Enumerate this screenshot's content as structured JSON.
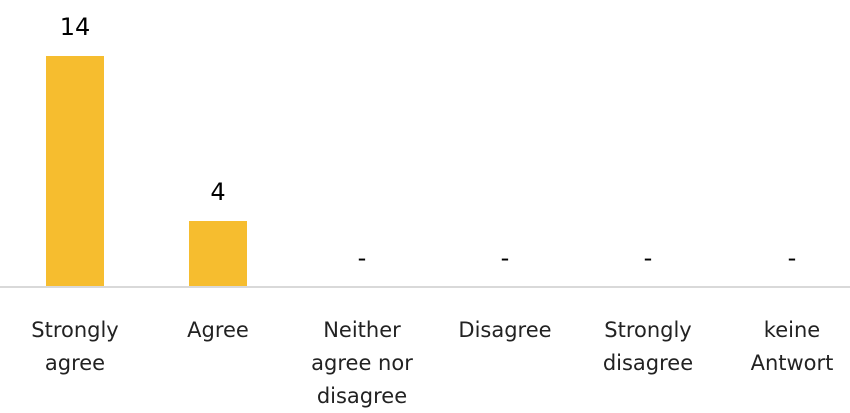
{
  "chart_data": {
    "type": "bar",
    "categories": [
      "Strongly agree",
      "Agree",
      "Neither agree nor disagree",
      "Disagree",
      "Strongly disagree",
      "keine Antwort"
    ],
    "category_label_lines": [
      [
        "Strongly",
        "agree"
      ],
      [
        "Agree"
      ],
      [
        "Neither",
        "agree nor",
        "disagree"
      ],
      [
        "Disagree"
      ],
      [
        "Strongly",
        "disagree"
      ],
      [
        "keine",
        "Antwort"
      ]
    ],
    "values": [
      14,
      4,
      0,
      0,
      0,
      0
    ],
    "data_labels": [
      "14",
      "4",
      "-",
      "-",
      "-",
      "-"
    ],
    "bar_color": "#F6BD2F",
    "axis_color": "#D9D9D9",
    "ylim": [
      0,
      14
    ],
    "grid": false,
    "legend": "none"
  }
}
